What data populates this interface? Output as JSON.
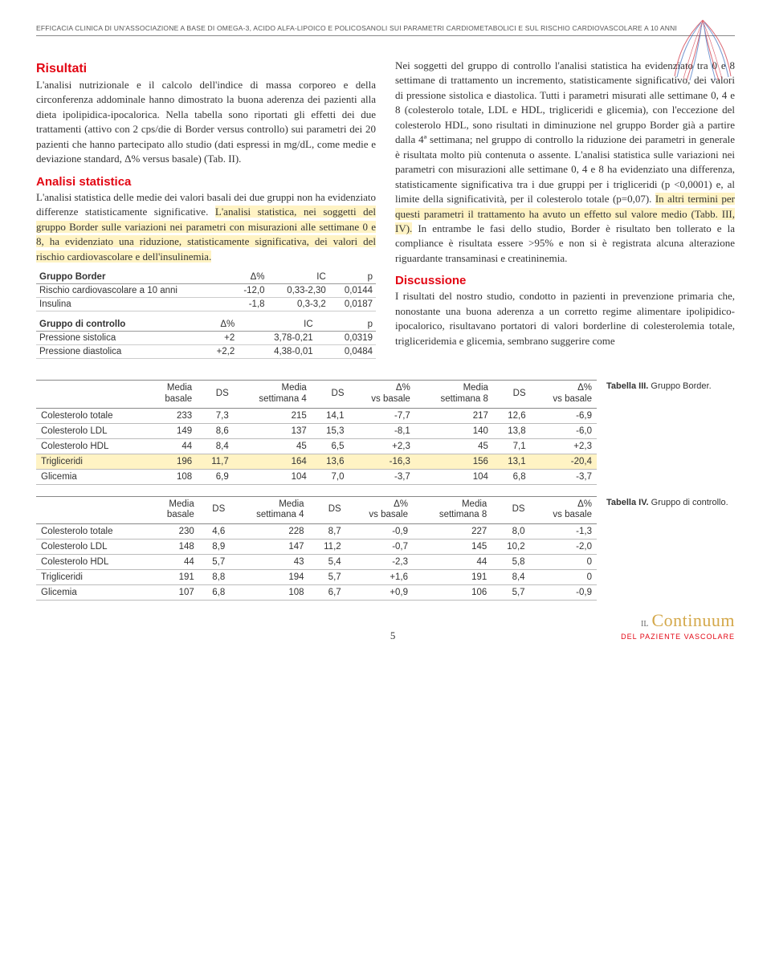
{
  "header": "EFFICACIA CLINICA DI UN'ASSOCIAZIONE A BASE DI OMEGA-3, ACIDO ALFA-LIPOICO E POLICOSANOLI SUI PARAMETRI CARDIOMETABOLICI E SUL RISCHIO CARDIOVASCOLARE A 10 ANNI",
  "left": {
    "risultati_title": "Risultati",
    "risultati_p": "L'analisi nutrizionale e il calcolo dell'indice di massa corporeo e della circonferenza addominale hanno dimostrato la buona aderenza dei pazienti alla dieta ipolipidica-ipocalorica. Nella tabella sono riportati gli effetti dei due trattamenti (attivo con 2 cps/die di Border versus controllo) sui parametri dei 20 pazienti che hanno partecipato allo studio (dati espressi in mg/dL, come medie e deviazione standard, Δ% versus basale) (Tab. II).",
    "analisi_title": "Analisi statistica",
    "analisi_p1": "L'analisi statistica delle medie dei valori basali dei due gruppi non ha evidenziato differenze statisticamente significative.",
    "analisi_hl": "L'analisi statistica, nei soggetti del gruppo Border sulle variazioni nei parametri con misurazioni alle settimane 0 e 8, ha evidenziato una riduzione, statisticamente significativa, dei valori del rischio cardiovascolare e dell'insulinemia."
  },
  "right": {
    "p1": "Nei soggetti del gruppo di controllo l'analisi statistica ha evidenziato tra 0 e 8 settimane di trattamento un incremento, statisticamente significativo, dei valori di pressione sistolica e diastolica. Tutti i parametri misurati alle settimane 0, 4 e 8 (colesterolo totale, LDL e HDL, trigliceridi e glicemia), con l'eccezione del colesterolo HDL, sono risultati in diminuzione nel gruppo Border già a partire dalla 4ª settimana; nel gruppo di controllo la riduzione dei parametri in generale è risultata molto più contenuta o assente.",
    "p2": "L'analisi statistica sulle variazioni nei parametri con misurazioni alle settimane 0, 4 e 8 ha evidenziato una differenza, statisticamente significativa tra i due gruppi per i trigliceridi (p <0,0001) e, al limite della significatività, per il colesterolo totale (p=0,07). ",
    "hl": "In altri termini per questi parametri il trattamento ha avuto un effetto sul valore medio (Tabb. III, IV).",
    "p3": "In entrambe le fasi dello studio, Border è risultato ben tollerato e la compliance è risultata essere >95% e non si è registrata alcuna alterazione riguardante transaminasi e creatininemia.",
    "discussione_title": "Discussione",
    "discussione_p": "I risultati del nostro studio, condotto in pazienti in prevenzione primaria che, nonostante una buona aderenza a un corretto regime alimentare ipolipidico-ipocalorico, risultavano portatori di valori borderline di colesterolemia totale, trigliceridemia e glicemia, sembrano suggerire come"
  },
  "mini1": {
    "title": "Gruppo Border",
    "h1": "Δ%",
    "h2": "IC",
    "h3": "p",
    "r1l": "Rischio cardiovascolare a 10 anni",
    "r1a": "-12,0",
    "r1b": "0,33-2,30",
    "r1c": "0,0144",
    "r2l": "Insulina",
    "r2a": "-1,8",
    "r2b": "0,3-3,2",
    "r2c": "0,0187"
  },
  "mini2": {
    "title": "Gruppo di controllo",
    "h1": "Δ%",
    "h2": "IC",
    "h3": "p",
    "r1l": "Pressione sistolica",
    "r1a": "+2",
    "r1b": "3,78-0,21",
    "r1c": "0,0319",
    "r2l": "Pressione diastolica",
    "r2a": "+2,2",
    "r2b": "4,38-0,01",
    "r2c": "0,0484"
  },
  "wt_headers": {
    "c1": "Media\nbasale",
    "c2": "DS",
    "c3": "Media\nsettimana 4",
    "c4": "DS",
    "c5": "Δ%\nvs basale",
    "c6": "Media\nsettimana 8",
    "c7": "DS",
    "c8": "Δ%\nvs basale"
  },
  "t3": {
    "caption_bold": "Tabella III.",
    "caption": " Gruppo Border.",
    "rows": [
      {
        "l": "Colesterolo totale",
        "a": "233",
        "b": "7,3",
        "c": "215",
        "d": "14,1",
        "e": "-7,7",
        "f": "217",
        "g": "12,6",
        "h": "-6,9",
        "hl": false
      },
      {
        "l": "Colesterolo LDL",
        "a": "149",
        "b": "8,6",
        "c": "137",
        "d": "15,3",
        "e": "-8,1",
        "f": "140",
        "g": "13,8",
        "h": "-6,0",
        "hl": false
      },
      {
        "l": "Colesterolo HDL",
        "a": "44",
        "b": "8,4",
        "c": "45",
        "d": "6,5",
        "e": "+2,3",
        "f": "45",
        "g": "7,1",
        "h": "+2,3",
        "hl": false
      },
      {
        "l": "Trigliceridi",
        "a": "196",
        "b": "11,7",
        "c": "164",
        "d": "13,6",
        "e": "-16,3",
        "f": "156",
        "g": "13,1",
        "h": "-20,4",
        "hl": true
      },
      {
        "l": "Glicemia",
        "a": "108",
        "b": "6,9",
        "c": "104",
        "d": "7,0",
        "e": "-3,7",
        "f": "104",
        "g": "6,8",
        "h": "-3,7",
        "hl": false
      }
    ]
  },
  "t4": {
    "caption_bold": "Tabella IV.",
    "caption": " Gruppo di controllo.",
    "rows": [
      {
        "l": "Colesterolo totale",
        "a": "230",
        "b": "4,6",
        "c": "228",
        "d": "8,7",
        "e": "-0,9",
        "f": "227",
        "g": "8,0",
        "h": "-1,3",
        "hl": false
      },
      {
        "l": "Colesterolo LDL",
        "a": "148",
        "b": "8,9",
        "c": "147",
        "d": "11,2",
        "e": "-0,7",
        "f": "145",
        "g": "10,2",
        "h": "-2,0",
        "hl": false
      },
      {
        "l": "Colesterolo HDL",
        "a": "44",
        "b": "5,7",
        "c": "43",
        "d": "5,4",
        "e": "-2,3",
        "f": "44",
        "g": "5,8",
        "h": "0",
        "hl": false
      },
      {
        "l": "Trigliceridi",
        "a": "191",
        "b": "8,8",
        "c": "194",
        "d": "5,7",
        "e": "+1,6",
        "f": "191",
        "g": "8,4",
        "h": "0",
        "hl": false
      },
      {
        "l": "Glicemia",
        "a": "107",
        "b": "6,8",
        "c": "108",
        "d": "6,7",
        "e": "+0,9",
        "f": "106",
        "g": "5,7",
        "h": "-0,9",
        "hl": false
      }
    ]
  },
  "page_number": "5",
  "footer": {
    "il": "IL",
    "cont": "Continuum",
    "sub": "DEL PAZIENTE VASCOLARE"
  }
}
